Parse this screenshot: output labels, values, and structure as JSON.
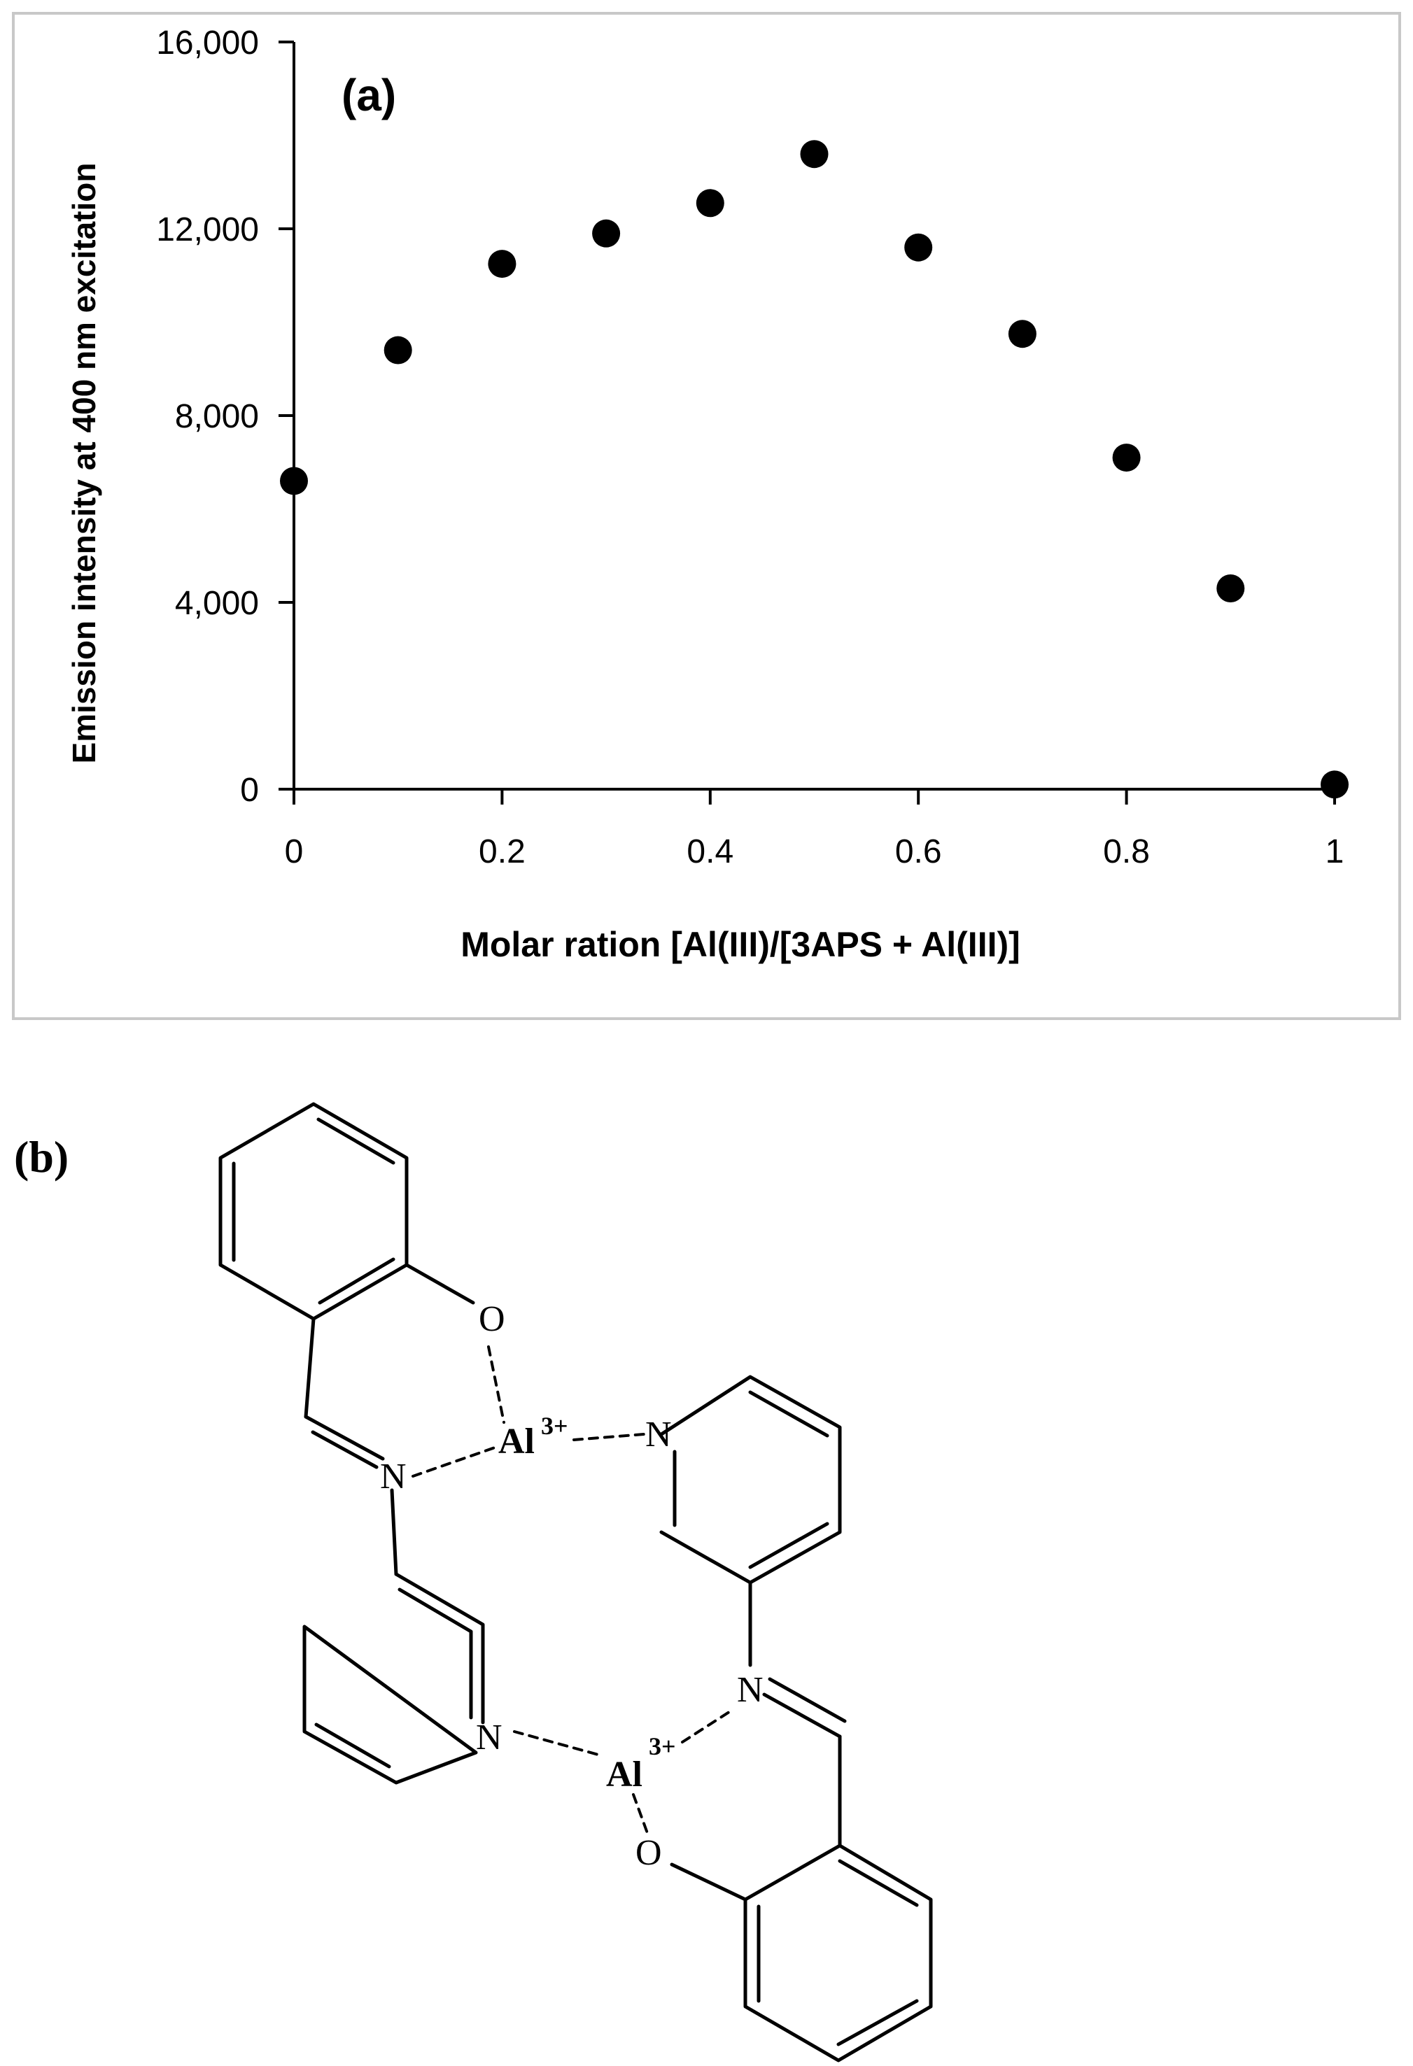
{
  "chart_data": {
    "type": "scatter",
    "panel_label": "(a)",
    "xlabel": "Molar ration [Al(III)/[3APS + Al(III)]",
    "ylabel": "Emission intensity at 400 nm excitation",
    "xlim": [
      0,
      1
    ],
    "ylim": [
      0,
      16000
    ],
    "x_ticks": [
      0,
      0.2,
      0.4,
      0.6,
      0.8,
      1
    ],
    "x_tick_labels": [
      "0",
      "0.2",
      "0.4",
      "0.6",
      "0.8",
      "1"
    ],
    "y_ticks": [
      0,
      4000,
      8000,
      12000,
      16000
    ],
    "y_tick_labels": [
      "0",
      "4,000",
      "8,000",
      "12,000",
      "16,000"
    ],
    "grid": false,
    "series": [
      {
        "x": [
          0,
          0.1,
          0.2,
          0.3,
          0.4,
          0.5,
          0.6,
          0.7,
          0.8,
          0.9,
          1.0
        ],
        "y": [
          6600,
          9400,
          11250,
          11900,
          12550,
          13600,
          11600,
          9750,
          7100,
          4300,
          100
        ]
      }
    ],
    "colors": {
      "marker": "#000000",
      "axis": "#000000",
      "frame": "#c8c8c8"
    }
  },
  "diagram": {
    "panel_label": "(b)",
    "atoms": {
      "o_top": "O",
      "al_top": "Al",
      "al_top_charge": "3+",
      "n_pyr_top": "N",
      "n_imine_top": "N",
      "n_imine_bottom": "N",
      "n_pyr_bottom": "N",
      "al_bottom": "Al",
      "al_bottom_charge": "3+",
      "o_bottom": "O"
    }
  }
}
